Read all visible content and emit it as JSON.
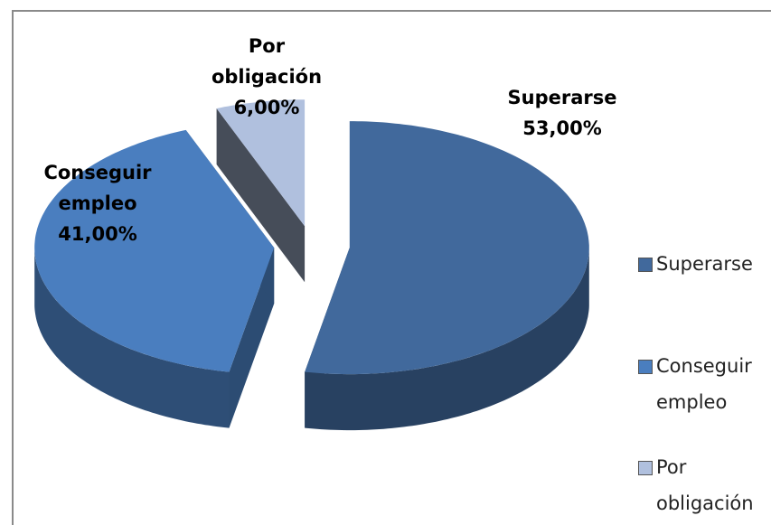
{
  "chart_data": {
    "type": "pie3d",
    "categories": [
      "Superarse",
      "Conseguir empleo",
      "Por obligación"
    ],
    "values": [
      53,
      41,
      6
    ],
    "value_labels": [
      "53,00%",
      "41,00%",
      "6,00%"
    ],
    "colors": [
      "#41699c",
      "#4a7ebf",
      "#b0c0de"
    ],
    "legend": "right"
  }
}
